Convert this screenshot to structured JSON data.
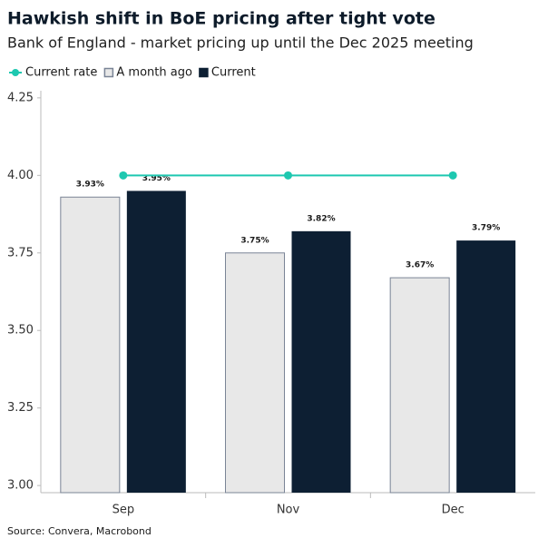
{
  "chart_data": {
    "type": "bar",
    "title": "Hawkish shift in BoE pricing after tight vote",
    "subtitle": "Bank of England - market pricing up until the Dec 2025 meeting",
    "source": "Source: Convera, Macrobond",
    "categories": [
      "Sep",
      "Nov",
      "Dec"
    ],
    "series": [
      {
        "name": "Current rate",
        "type": "line",
        "color": "#1ec8b0",
        "values": [
          4.0,
          4.0,
          4.0
        ]
      },
      {
        "name": "A month ago",
        "type": "bar",
        "color": "#e8e8e8",
        "stroke": "#7a8496",
        "values": [
          3.93,
          3.75,
          3.67
        ],
        "value_labels": [
          "3.93%",
          "3.75%",
          "3.67%"
        ]
      },
      {
        "name": "Current",
        "type": "bar",
        "color": "#0d1f33",
        "values": [
          3.95,
          3.82,
          3.79
        ],
        "value_labels": [
          "3.95%",
          "3.82%",
          "3.79%"
        ]
      }
    ],
    "ylim": [
      2.977,
      4.273
    ],
    "yticks": [
      {
        "value": 3,
        "label": "3.00"
      },
      {
        "value": 3.25,
        "label": "3.25"
      },
      {
        "value": 3.5,
        "label": "3.50"
      },
      {
        "value": 3.75,
        "label": "3.75"
      },
      {
        "value": 4,
        "label": "4.00"
      },
      {
        "value": 4.25,
        "label": "4.25"
      }
    ],
    "grid": false
  }
}
